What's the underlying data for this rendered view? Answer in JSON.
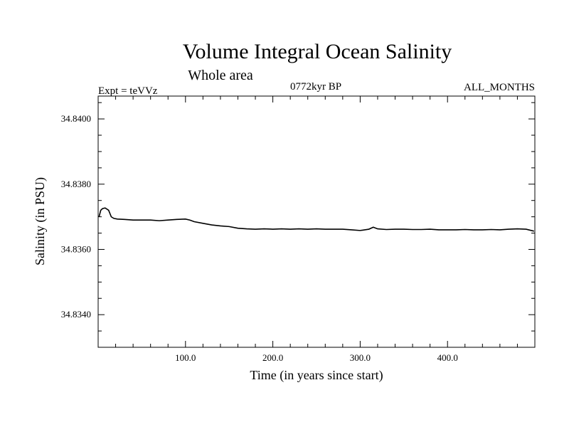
{
  "chart_data": {
    "type": "line",
    "title": "Volume Integral Ocean Salinity",
    "subtitle": "Whole area",
    "experiment": "Expt = teVVz",
    "period": "0772kyr BP",
    "months": "ALL_MONTHS",
    "xlabel": "Time (in years since start)",
    "ylabel": "Salinity (in PSU)",
    "xlim": [
      0,
      500
    ],
    "ylim": [
      34.833,
      34.8407
    ],
    "xticks": [
      {
        "value": 100,
        "label": "100.0"
      },
      {
        "value": 200,
        "label": "200.0"
      },
      {
        "value": 300,
        "label": "300.0"
      },
      {
        "value": 400,
        "label": "400.0"
      }
    ],
    "yticks": [
      {
        "value": 34.834,
        "label": "34.8340"
      },
      {
        "value": 34.836,
        "label": "34.8360"
      },
      {
        "value": 34.838,
        "label": "34.8380"
      },
      {
        "value": 34.84,
        "label": "34.8400"
      }
    ],
    "grid": false,
    "series": [
      {
        "color": "#000000",
        "x": [
          1,
          3,
          5,
          8,
          12,
          15,
          18,
          22,
          30,
          40,
          50,
          60,
          70,
          80,
          90,
          100,
          105,
          110,
          120,
          130,
          140,
          150,
          160,
          170,
          180,
          190,
          200,
          210,
          220,
          230,
          240,
          250,
          260,
          270,
          280,
          290,
          300,
          310,
          315,
          320,
          330,
          340,
          350,
          360,
          370,
          380,
          390,
          400,
          410,
          420,
          430,
          440,
          450,
          460,
          470,
          480,
          490,
          499
        ],
        "y": [
          34.837,
          34.8372,
          34.83725,
          34.83727,
          34.8372,
          34.837,
          34.83695,
          34.83693,
          34.83692,
          34.8369,
          34.8369,
          34.8369,
          34.83688,
          34.8369,
          34.83692,
          34.83693,
          34.8369,
          34.83685,
          34.8368,
          34.83675,
          34.83672,
          34.8367,
          34.83665,
          34.83663,
          34.83662,
          34.83663,
          34.83662,
          34.83663,
          34.83662,
          34.83663,
          34.83662,
          34.83663,
          34.83662,
          34.83662,
          34.83662,
          34.8366,
          34.83658,
          34.83662,
          34.83668,
          34.83663,
          34.83661,
          34.83662,
          34.83662,
          34.83661,
          34.83661,
          34.83662,
          34.8366,
          34.8366,
          34.8366,
          34.83661,
          34.8366,
          34.8366,
          34.83661,
          34.8366,
          34.83662,
          34.83663,
          34.83662,
          34.83656
        ]
      }
    ]
  }
}
